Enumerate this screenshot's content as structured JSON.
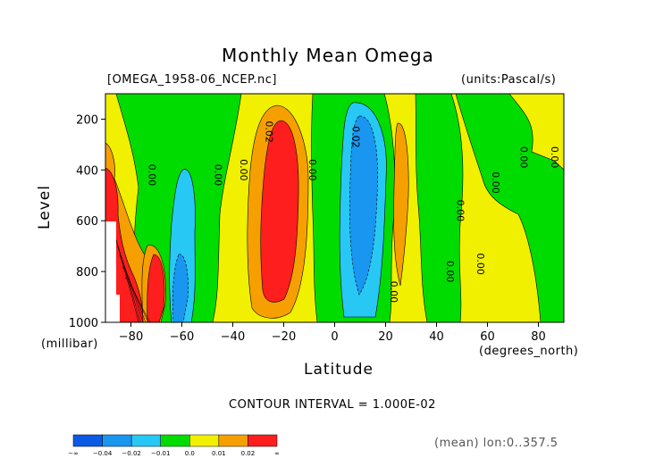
{
  "chart_data": {
    "type": "contour",
    "title": "Monthly Mean Omega",
    "source_label": "[OMEGA_1958-06_NCEP.nc]",
    "units_label": "(units:Pascal/s)",
    "xlabel": "Latitude",
    "x_units": "(degrees_north)",
    "ylabel": "Level",
    "y_units": "(millibar)",
    "xlim": [
      -90,
      90
    ],
    "ylim": [
      1000,
      100
    ],
    "x_ticks": [
      -80,
      -60,
      -40,
      -20,
      0,
      20,
      40,
      60,
      80
    ],
    "y_ticks": [
      200,
      400,
      600,
      800,
      1000
    ],
    "contour_interval": "CONTOUR INTERVAL = 1.000E-02",
    "averaging_note": "(mean) lon:0..357.5",
    "contour_labels": [
      "0.00",
      "0.02",
      "0.00",
      "0.00",
      "0.00",
      "0.02",
      "0.00",
      "0.00",
      "0.00",
      "0.00",
      "0.00",
      "0.00",
      "0.00"
    ],
    "colorbar": {
      "levels": [
        "-∞",
        "-0.04",
        "-0.02",
        "-0.01",
        "0.0",
        "0.01",
        "0.02",
        "∞"
      ],
      "colors": [
        "#0a5ae6",
        "#1996f0",
        "#28c8f5",
        "#00dc00",
        "#f0f000",
        "#f5a000",
        "#ff1e1e"
      ]
    }
  }
}
